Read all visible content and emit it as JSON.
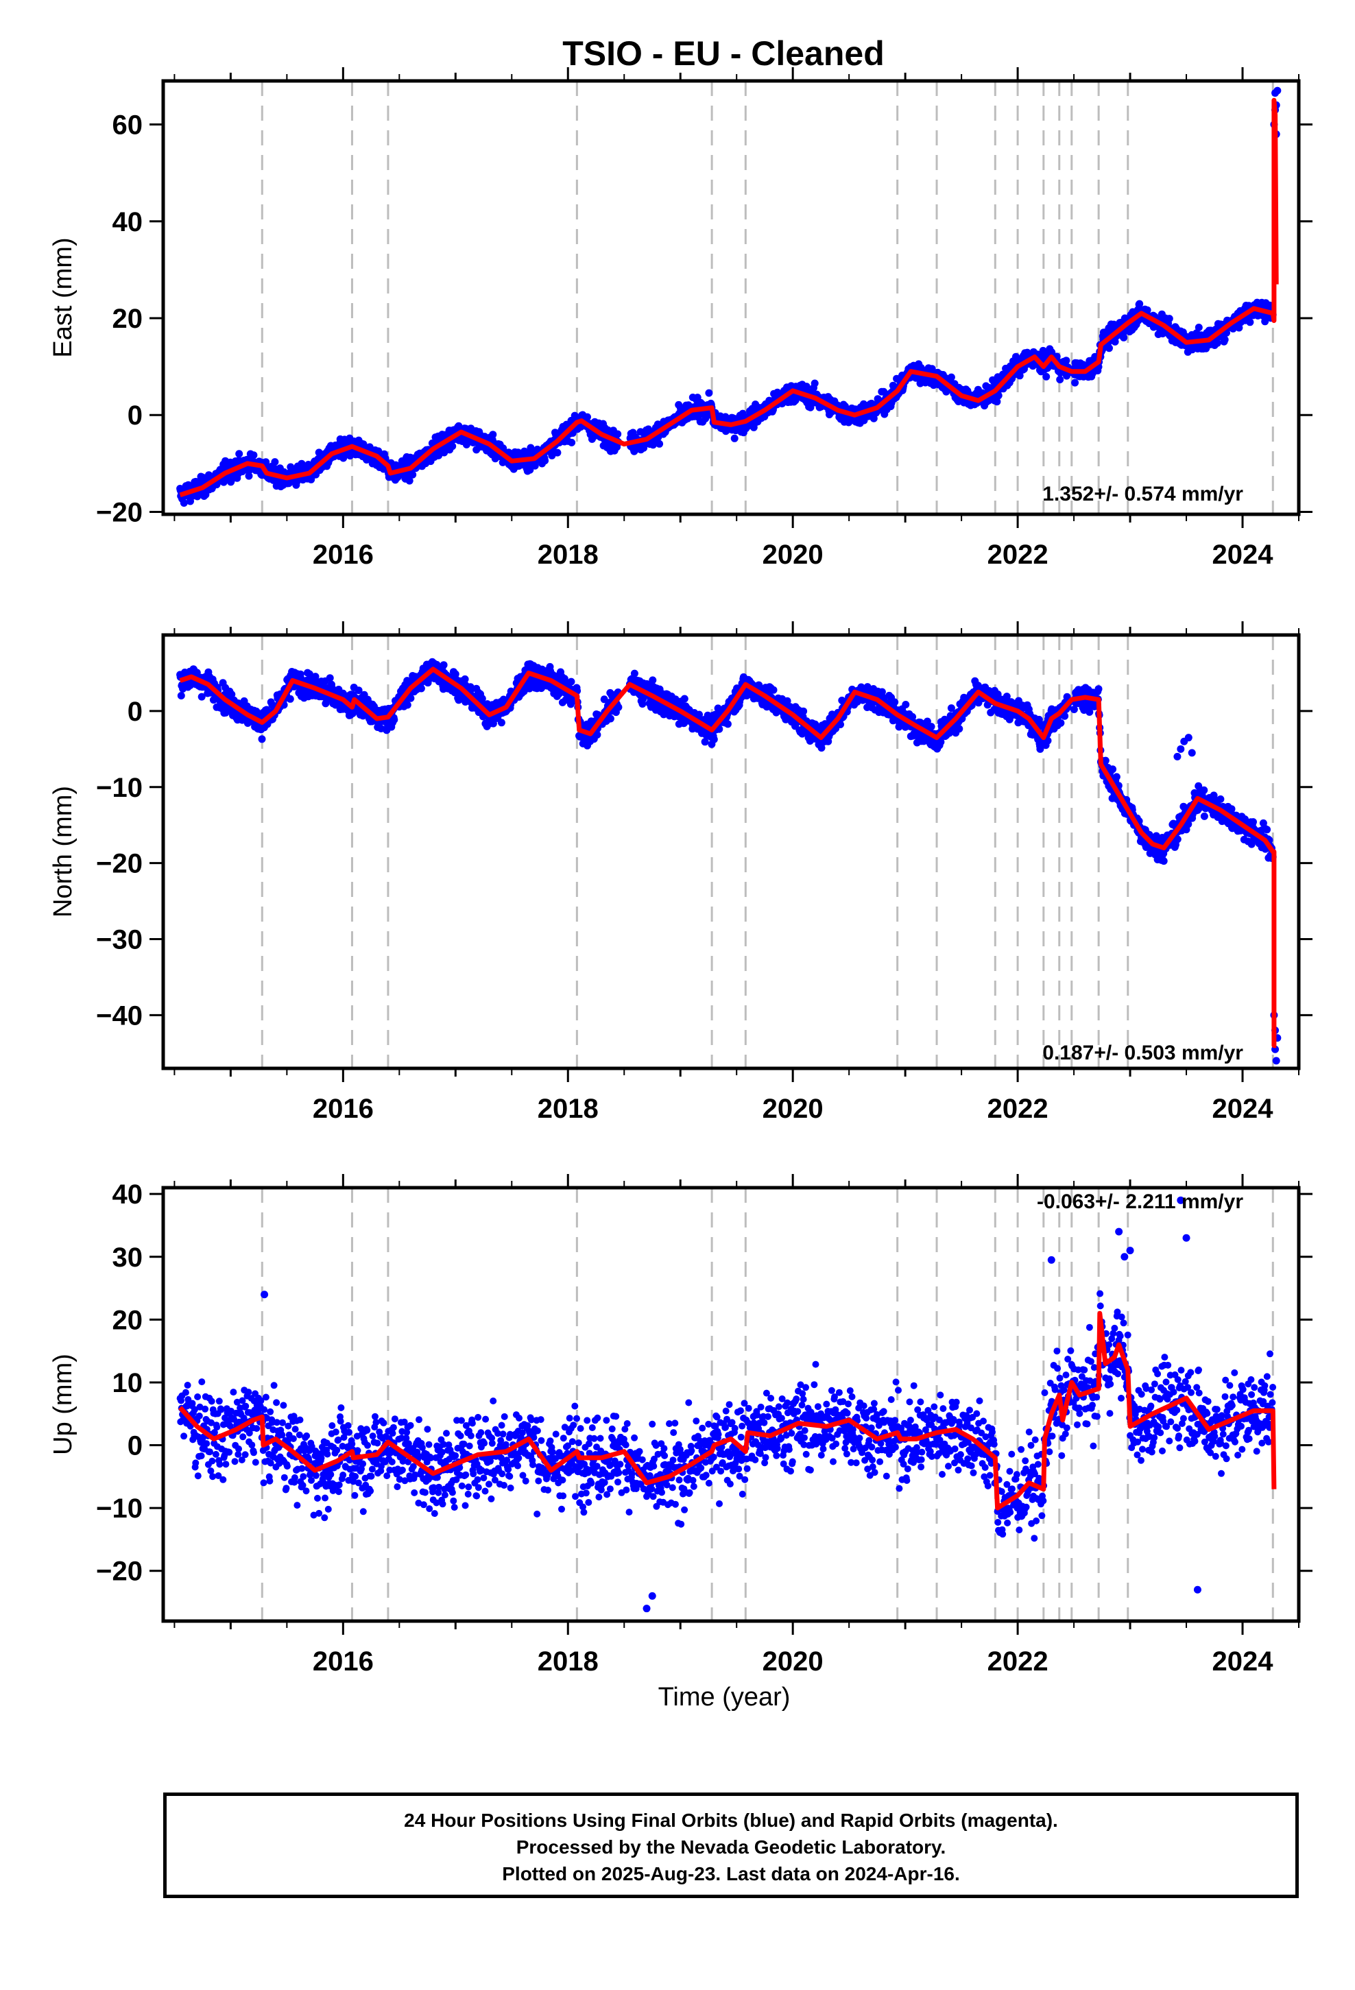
{
  "title": "TSIO  - EU - Cleaned",
  "xlabel": "Time (year)",
  "x_ticks": [
    "2016",
    "2018",
    "2020",
    "2022",
    "2024"
  ],
  "colors": {
    "final_orbits": "#0000ff",
    "model": "#ff0000",
    "event_lines": "#bdbdbd",
    "axis": "#000000"
  },
  "footer": [
    "24 Hour Positions Using Final Orbits (blue) and Rapid Orbits (magenta).",
    "Processed by the Nevada Geodetic Laboratory.",
    "Plotted on 2025-Aug-23. Last data on 2024-Apr-16."
  ],
  "chart_data": [
    {
      "type": "scatter",
      "component": "east",
      "ylabel": "East (mm)",
      "rate_label": "1.352+/- 0.574 mm/yr",
      "xlim": [
        2014.4,
        2024.5
      ],
      "ylim": [
        -20.5,
        69
      ],
      "y_ticks": [
        -20,
        0,
        20,
        40,
        60
      ],
      "event_lines": [
        2015.28,
        2016.08,
        2016.4,
        2018.08,
        2019.28,
        2019.58,
        2020.93,
        2021.28,
        2021.8,
        2022.0,
        2022.23,
        2022.37,
        2022.48,
        2022.72,
        2022.98,
        2024.27
      ],
      "model_knots": [
        [
          2014.55,
          -16.5
        ],
        [
          2014.75,
          -15
        ],
        [
          2014.95,
          -12
        ],
        [
          2015.15,
          -10
        ],
        [
          2015.28,
          -10.5
        ],
        [
          2015.32,
          -12
        ],
        [
          2015.5,
          -13
        ],
        [
          2015.7,
          -12
        ],
        [
          2015.9,
          -8
        ],
        [
          2016.08,
          -6.5
        ],
        [
          2016.3,
          -8.5
        ],
        [
          2016.4,
          -10.5
        ],
        [
          2016.42,
          -12
        ],
        [
          2016.6,
          -11
        ],
        [
          2016.8,
          -7
        ],
        [
          2017.05,
          -3.5
        ],
        [
          2017.3,
          -6
        ],
        [
          2017.5,
          -9.5
        ],
        [
          2017.7,
          -9
        ],
        [
          2017.9,
          -5.5
        ],
        [
          2018.08,
          -1.5
        ],
        [
          2018.12,
          -1.2
        ],
        [
          2018.3,
          -4
        ],
        [
          2018.5,
          -6
        ],
        [
          2018.7,
          -5
        ],
        [
          2018.9,
          -2
        ],
        [
          2019.1,
          1
        ],
        [
          2019.28,
          1.5
        ],
        [
          2019.3,
          -1.5
        ],
        [
          2019.45,
          -2
        ],
        [
          2019.58,
          -1.3
        ],
        [
          2019.75,
          1
        ],
        [
          2020.0,
          5
        ],
        [
          2020.2,
          3.5
        ],
        [
          2020.4,
          1
        ],
        [
          2020.55,
          0
        ],
        [
          2020.75,
          1.5
        ],
        [
          2020.93,
          5
        ],
        [
          2021.05,
          9
        ],
        [
          2021.28,
          8
        ],
        [
          2021.5,
          4
        ],
        [
          2021.65,
          3
        ],
        [
          2021.8,
          5
        ],
        [
          2022.0,
          10
        ],
        [
          2022.15,
          12
        ],
        [
          2022.23,
          10
        ],
        [
          2022.3,
          12
        ],
        [
          2022.37,
          10
        ],
        [
          2022.48,
          9
        ],
        [
          2022.6,
          9
        ],
        [
          2022.72,
          11
        ],
        [
          2022.74,
          14.5
        ],
        [
          2022.98,
          19
        ],
        [
          2023.1,
          21
        ],
        [
          2023.3,
          18.5
        ],
        [
          2023.5,
          15
        ],
        [
          2023.7,
          15.5
        ],
        [
          2023.9,
          19
        ],
        [
          2024.1,
          22
        ],
        [
          2024.27,
          21
        ],
        [
          2024.28,
          19.5
        ],
        [
          2024.28,
          65
        ],
        [
          2024.29,
          62
        ],
        [
          2024.3,
          27
        ]
      ],
      "noise_sd": 1.4,
      "scatter_extras": [
        [
          2024.28,
          60
        ],
        [
          2024.29,
          63
        ],
        [
          2024.29,
          66.5
        ],
        [
          2024.3,
          64
        ],
        [
          2024.31,
          67
        ],
        [
          2024.3,
          58
        ]
      ]
    },
    {
      "type": "scatter",
      "component": "north",
      "ylabel": "North (mm)",
      "rate_label": "0.187+/- 0.503 mm/yr",
      "xlim": [
        2014.4,
        2024.5
      ],
      "ylim": [
        -47,
        10
      ],
      "y_ticks": [
        -40,
        -30,
        -20,
        -10,
        0
      ],
      "event_lines": [
        2015.28,
        2016.08,
        2016.4,
        2018.08,
        2019.28,
        2019.58,
        2020.93,
        2021.28,
        2021.8,
        2022.0,
        2022.23,
        2022.37,
        2022.48,
        2022.72,
        2022.98,
        2024.27
      ],
      "model_knots": [
        [
          2014.55,
          4
        ],
        [
          2014.65,
          4.5
        ],
        [
          2014.8,
          3.5
        ],
        [
          2014.95,
          1.5
        ],
        [
          2015.15,
          -0.5
        ],
        [
          2015.28,
          -1.5
        ],
        [
          2015.4,
          0
        ],
        [
          2015.55,
          4
        ],
        [
          2015.75,
          3
        ],
        [
          2016.0,
          1.5
        ],
        [
          2016.08,
          0.5
        ],
        [
          2016.1,
          1.5
        ],
        [
          2016.3,
          -1
        ],
        [
          2016.4,
          -0.8
        ],
        [
          2016.6,
          3
        ],
        [
          2016.8,
          5.5
        ],
        [
          2017.05,
          3
        ],
        [
          2017.3,
          -0.5
        ],
        [
          2017.45,
          0.5
        ],
        [
          2017.65,
          5
        ],
        [
          2017.85,
          4
        ],
        [
          2018.08,
          2
        ],
        [
          2018.1,
          -2.5
        ],
        [
          2018.2,
          -3
        ],
        [
          2018.35,
          0
        ],
        [
          2018.55,
          3.5
        ],
        [
          2018.75,
          2
        ],
        [
          2019.0,
          0
        ],
        [
          2019.28,
          -2.5
        ],
        [
          2019.42,
          0
        ],
        [
          2019.58,
          3.5
        ],
        [
          2019.75,
          2
        ],
        [
          2020.0,
          -0.5
        ],
        [
          2020.25,
          -3.5
        ],
        [
          2020.4,
          -1
        ],
        [
          2020.55,
          2.5
        ],
        [
          2020.75,
          1.5
        ],
        [
          2020.93,
          -0.5
        ],
        [
          2021.1,
          -2
        ],
        [
          2021.28,
          -3.5
        ],
        [
          2021.45,
          -1
        ],
        [
          2021.65,
          2.5
        ],
        [
          2021.8,
          1
        ],
        [
          2022.0,
          0
        ],
        [
          2022.1,
          -1
        ],
        [
          2022.23,
          -3.5
        ],
        [
          2022.3,
          -1
        ],
        [
          2022.37,
          -0.3
        ],
        [
          2022.48,
          1.5
        ],
        [
          2022.6,
          1.8
        ],
        [
          2022.72,
          1.5
        ],
        [
          2022.74,
          -7
        ],
        [
          2022.9,
          -11
        ],
        [
          2022.98,
          -13
        ],
        [
          2023.1,
          -16
        ],
        [
          2023.2,
          -17.5
        ],
        [
          2023.3,
          -18
        ],
        [
          2023.45,
          -15
        ],
        [
          2023.6,
          -11.5
        ],
        [
          2023.8,
          -13
        ],
        [
          2024.0,
          -15
        ],
        [
          2024.2,
          -17
        ],
        [
          2024.27,
          -18.5
        ],
        [
          2024.28,
          -18.5
        ],
        [
          2024.28,
          -44
        ],
        [
          2024.3,
          -44
        ]
      ],
      "noise_sd": 1.1,
      "scatter_extras": [
        [
          2024.28,
          -40
        ],
        [
          2024.29,
          -42
        ],
        [
          2024.29,
          -44.5
        ],
        [
          2024.3,
          -46
        ],
        [
          2024.31,
          -43
        ],
        [
          2023.45,
          -5
        ],
        [
          2023.48,
          -4
        ],
        [
          2023.52,
          -3.5
        ],
        [
          2023.42,
          -6
        ],
        [
          2023.55,
          -5.5
        ],
        [
          2022.2,
          -5
        ],
        [
          2022.25,
          -4.5
        ]
      ]
    },
    {
      "type": "scatter",
      "component": "up",
      "ylabel": "Up (mm)",
      "rate_label": "-0.063+/- 2.211 mm/yr",
      "xlim": [
        2014.4,
        2024.5
      ],
      "ylim": [
        -28,
        41
      ],
      "y_ticks": [
        -20,
        -10,
        0,
        10,
        20,
        30,
        40
      ],
      "event_lines": [
        2015.28,
        2016.08,
        2016.4,
        2018.08,
        2019.28,
        2019.58,
        2020.93,
        2021.28,
        2021.8,
        2022.0,
        2022.23,
        2022.37,
        2022.48,
        2022.72,
        2022.98,
        2024.27
      ],
      "model_knots": [
        [
          2014.55,
          6
        ],
        [
          2014.7,
          3
        ],
        [
          2014.85,
          1
        ],
        [
          2015.05,
          2.5
        ],
        [
          2015.2,
          4
        ],
        [
          2015.28,
          4.5
        ],
        [
          2015.29,
          0
        ],
        [
          2015.4,
          1
        ],
        [
          2015.55,
          -1
        ],
        [
          2015.75,
          -4
        ],
        [
          2015.95,
          -2.5
        ],
        [
          2016.08,
          -1
        ],
        [
          2016.09,
          -2
        ],
        [
          2016.3,
          -1.5
        ],
        [
          2016.4,
          0.5
        ],
        [
          2016.6,
          -2
        ],
        [
          2016.8,
          -4.5
        ],
        [
          2017.0,
          -3
        ],
        [
          2017.2,
          -1.5
        ],
        [
          2017.45,
          -1
        ],
        [
          2017.65,
          1
        ],
        [
          2017.85,
          -4
        ],
        [
          2018.08,
          -1
        ],
        [
          2018.1,
          -2
        ],
        [
          2018.3,
          -2
        ],
        [
          2018.5,
          -1
        ],
        [
          2018.7,
          -6
        ],
        [
          2018.9,
          -5
        ],
        [
          2019.1,
          -3
        ],
        [
          2019.28,
          -1
        ],
        [
          2019.3,
          0
        ],
        [
          2019.45,
          1
        ],
        [
          2019.58,
          -1
        ],
        [
          2019.6,
          2
        ],
        [
          2019.8,
          1.5
        ],
        [
          2020.05,
          3.5
        ],
        [
          2020.3,
          3
        ],
        [
          2020.5,
          4
        ],
        [
          2020.75,
          1
        ],
        [
          2020.93,
          2
        ],
        [
          2020.96,
          1
        ],
        [
          2021.1,
          1
        ],
        [
          2021.28,
          2
        ],
        [
          2021.45,
          2.5
        ],
        [
          2021.6,
          1
        ],
        [
          2021.8,
          -2
        ],
        [
          2021.82,
          -10
        ],
        [
          2022.0,
          -8
        ],
        [
          2022.1,
          -6
        ],
        [
          2022.23,
          -7
        ],
        [
          2022.24,
          1
        ],
        [
          2022.3,
          5
        ],
        [
          2022.37,
          8
        ],
        [
          2022.4,
          4
        ],
        [
          2022.48,
          10
        ],
        [
          2022.55,
          8
        ],
        [
          2022.72,
          9
        ],
        [
          2022.73,
          21
        ],
        [
          2022.78,
          13
        ],
        [
          2022.86,
          14
        ],
        [
          2022.9,
          16
        ],
        [
          2022.98,
          12
        ],
        [
          2023.0,
          3
        ],
        [
          2023.2,
          5
        ],
        [
          2023.5,
          7.5
        ],
        [
          2023.7,
          2.5
        ],
        [
          2023.9,
          4
        ],
        [
          2024.1,
          5.5
        ],
        [
          2024.27,
          5.5
        ],
        [
          2024.28,
          -7
        ]
      ],
      "noise_sd": 4.5,
      "scatter_extras": [
        [
          2015.3,
          24
        ],
        [
          2018.7,
          -26
        ],
        [
          2018.75,
          -24
        ],
        [
          2023.45,
          39
        ],
        [
          2023.6,
          -23
        ],
        [
          2022.9,
          34
        ],
        [
          2022.95,
          30
        ],
        [
          2022.3,
          29.5
        ],
        [
          2023.0,
          31
        ],
        [
          2023.5,
          33
        ]
      ]
    }
  ]
}
